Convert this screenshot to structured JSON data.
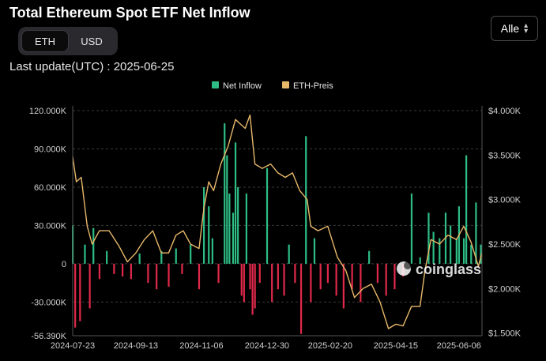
{
  "title": "Total Ethereum Spot ETF Net Inflow",
  "unit_toggle": {
    "options": [
      "ETH",
      "USD"
    ],
    "selected": "ETH"
  },
  "last_update": "Last update(UTC) : 2025-06-25",
  "range_select": {
    "value": "Alle"
  },
  "watermark": "coinglass",
  "colors": {
    "background": "#000000",
    "inflow_positive": "#2ebd85",
    "inflow_negative": "#e0294a",
    "price_line": "#e8b86a",
    "grid": "#3a3a3a"
  },
  "chart_data": {
    "type": "bar",
    "legend": [
      {
        "name": "Net Inflow",
        "color": "#2ebd85"
      },
      {
        "name": "ETH-Preis",
        "color": "#e8b86a"
      }
    ],
    "legend_position": "top-center",
    "grid": "horizontal dashed",
    "left_axis": {
      "ticks": [
        120000,
        90000,
        60000,
        30000,
        0,
        -30000,
        -56390
      ],
      "tick_labels": [
        "120.000K",
        "90.000K",
        "60.000K",
        "30.000K",
        "0",
        "-30.000K",
        "-56.390K"
      ],
      "range": [
        -56390,
        120000
      ]
    },
    "right_axis": {
      "ticks": [
        4000,
        3500,
        3000,
        2500,
        2000,
        1500
      ],
      "tick_labels": [
        "$4.000K",
        "$3.500K",
        "$3.000K",
        "$2.500K",
        "$2.000K",
        "$1.500K"
      ],
      "range": [
        1470,
        4000
      ]
    },
    "x_axis": {
      "start": "2024-07-23",
      "end": "2025-06-25",
      "tick_labels": [
        "2024-07-23",
        "2024-09-13",
        "2024-11-06",
        "2024-12-30",
        "2025-02-20",
        "2025-04-15",
        "2025-06-06"
      ]
    },
    "series": [
      {
        "name": "Net Inflow",
        "kind": "bar",
        "x": [
          "2024-07-23",
          "2024-07-25",
          "2024-07-29",
          "2024-08-02",
          "2024-08-06",
          "2024-08-09",
          "2024-08-14",
          "2024-08-20",
          "2024-08-26",
          "2024-09-02",
          "2024-09-09",
          "2024-09-16",
          "2024-09-23",
          "2024-09-30",
          "2024-10-04",
          "2024-10-10",
          "2024-10-16",
          "2024-10-21",
          "2024-10-28",
          "2024-11-04",
          "2024-11-08",
          "2024-11-12",
          "2024-11-15",
          "2024-11-20",
          "2024-11-25",
          "2024-11-27",
          "2024-11-29",
          "2024-12-02",
          "2024-12-04",
          "2024-12-06",
          "2024-12-09",
          "2024-12-11",
          "2024-12-13",
          "2024-12-16",
          "2024-12-18",
          "2024-12-20",
          "2024-12-24",
          "2024-12-30",
          "2025-01-03",
          "2025-01-08",
          "2025-01-13",
          "2025-01-17",
          "2025-01-22",
          "2025-01-27",
          "2025-01-31",
          "2025-02-04",
          "2025-02-07",
          "2025-02-12",
          "2025-02-18",
          "2025-02-25",
          "2025-03-03",
          "2025-03-10",
          "2025-03-17",
          "2025-03-24",
          "2025-03-31",
          "2025-04-07",
          "2025-04-14",
          "2025-04-21",
          "2025-04-28",
          "2025-05-05",
          "2025-05-12",
          "2025-05-16",
          "2025-05-21",
          "2025-05-26",
          "2025-05-30",
          "2025-06-04",
          "2025-06-06",
          "2025-06-10",
          "2025-06-12",
          "2025-06-16",
          "2025-06-20",
          "2025-06-24"
        ],
        "values": [
          30000,
          -50000,
          -45000,
          15000,
          -35000,
          28000,
          -12000,
          10000,
          -8000,
          -10000,
          -12000,
          8000,
          -15000,
          -20000,
          10000,
          -18000,
          12000,
          -8000,
          15000,
          -20000,
          60000,
          45000,
          20000,
          -15000,
          110000,
          85000,
          55000,
          40000,
          95000,
          60000,
          -25000,
          -30000,
          55000,
          -20000,
          -40000,
          -35000,
          -15000,
          75000,
          -30000,
          -20000,
          -25000,
          15000,
          -15000,
          -55000,
          100000,
          -30000,
          20000,
          -20000,
          -15000,
          -25000,
          -35000,
          -20000,
          -30000,
          10000,
          -15000,
          -25000,
          -20000,
          -10000,
          55000,
          5000,
          40000,
          25000,
          20000,
          40000,
          30000,
          20000,
          45000,
          20000,
          85000,
          15000,
          48000,
          15000
        ]
      },
      {
        "name": "ETH-Preis",
        "kind": "line",
        "x": [
          "2024-07-23",
          "2024-07-26",
          "2024-07-30",
          "2024-08-04",
          "2024-08-08",
          "2024-08-14",
          "2024-08-22",
          "2024-08-30",
          "2024-09-06",
          "2024-09-13",
          "2024-09-20",
          "2024-09-27",
          "2024-10-04",
          "2024-10-10",
          "2024-10-16",
          "2024-10-22",
          "2024-10-28",
          "2024-11-04",
          "2024-11-08",
          "2024-11-12",
          "2024-11-16",
          "2024-11-22",
          "2024-11-28",
          "2024-12-04",
          "2024-12-08",
          "2024-12-12",
          "2024-12-16",
          "2024-12-20",
          "2024-12-26",
          "2025-01-02",
          "2025-01-08",
          "2025-01-14",
          "2025-01-20",
          "2025-01-26",
          "2025-02-01",
          "2025-02-04",
          "2025-02-10",
          "2025-02-18",
          "2025-02-26",
          "2025-03-05",
          "2025-03-12",
          "2025-03-19",
          "2025-03-26",
          "2025-04-02",
          "2025-04-09",
          "2025-04-15",
          "2025-04-21",
          "2025-04-28",
          "2025-05-05",
          "2025-05-09",
          "2025-05-14",
          "2025-05-21",
          "2025-05-28",
          "2025-06-04",
          "2025-06-10",
          "2025-06-16",
          "2025-06-22",
          "2025-06-25"
        ],
        "values": [
          3480,
          3200,
          3250,
          2700,
          2500,
          2650,
          2650,
          2480,
          2300,
          2400,
          2550,
          2650,
          2400,
          2400,
          2600,
          2650,
          2500,
          2450,
          2900,
          3200,
          3100,
          3400,
          3600,
          3900,
          3850,
          3800,
          3950,
          3400,
          3350,
          3400,
          3300,
          3250,
          3300,
          3100,
          3000,
          2700,
          2650,
          2700,
          2350,
          2200,
          1900,
          2000,
          2050,
          1850,
          1550,
          1600,
          1580,
          1800,
          1800,
          2200,
          2550,
          2500,
          2600,
          2550,
          2700,
          2520,
          2250,
          2400
        ]
      }
    ]
  }
}
